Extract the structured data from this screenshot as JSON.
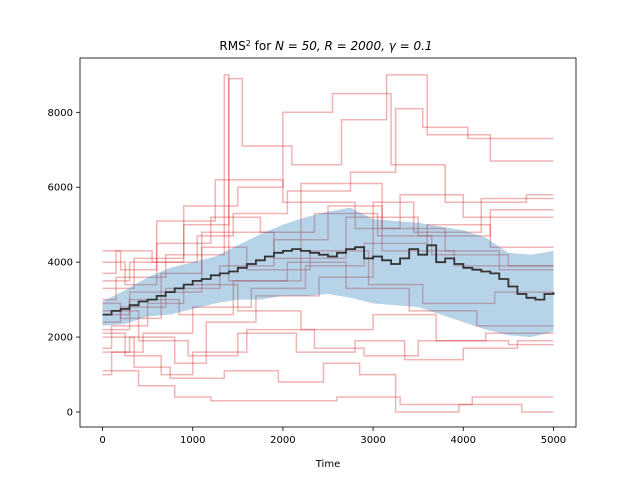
{
  "chart_data": {
    "type": "line",
    "title": "RMS² for N = 50, R = 2000, γ = 0.1",
    "title_parts": {
      "prefix": "RMS",
      "sup": "2",
      "mid": " for ",
      "math": "N = 50, R = 2000, γ = 0.1"
    },
    "xlabel": "Time",
    "ylabel": "",
    "xlim": [
      -250,
      5250
    ],
    "ylim": [
      -400,
      9450
    ],
    "xticks": [
      0,
      1000,
      2000,
      3000,
      4000,
      5000
    ],
    "yticks": [
      0,
      2000,
      4000,
      6000,
      8000
    ],
    "grid": false,
    "colors": {
      "runs": "#d62728",
      "band": "#1f77b4",
      "mean": "#333333"
    },
    "band": {
      "x": [
        0,
        250,
        500,
        750,
        1000,
        1250,
        1500,
        1750,
        2000,
        2250,
        2500,
        2750,
        3000,
        3250,
        3500,
        3750,
        4000,
        4250,
        4500,
        4750,
        5000
      ],
      "lower": [
        2300,
        2350,
        2550,
        2600,
        2750,
        2900,
        3000,
        3000,
        3100,
        3100,
        3150,
        3050,
        2900,
        2850,
        2800,
        2600,
        2400,
        2200,
        2050,
        2000,
        2150
      ],
      "upper": [
        2950,
        3250,
        3600,
        3850,
        4000,
        4150,
        4450,
        4750,
        5000,
        5200,
        5350,
        5450,
        5150,
        5100,
        5050,
        4950,
        4850,
        4650,
        4250,
        4200,
        4300
      ]
    },
    "mean": {
      "x": [
        0,
        100,
        200,
        300,
        400,
        500,
        600,
        700,
        800,
        900,
        1000,
        1100,
        1200,
        1300,
        1400,
        1500,
        1600,
        1700,
        1800,
        1900,
        2000,
        2100,
        2200,
        2300,
        2400,
        2500,
        2600,
        2700,
        2800,
        2900,
        3000,
        3100,
        3200,
        3300,
        3400,
        3500,
        3600,
        3700,
        3800,
        3900,
        4000,
        4100,
        4200,
        4300,
        4400,
        4500,
        4600,
        4700,
        4800,
        4900,
        5000
      ],
      "y": [
        2600,
        2700,
        2750,
        2850,
        2950,
        3000,
        3100,
        3200,
        3300,
        3400,
        3500,
        3550,
        3650,
        3700,
        3750,
        3850,
        3950,
        4050,
        4150,
        4250,
        4300,
        4350,
        4300,
        4250,
        4200,
        4150,
        4250,
        4350,
        4400,
        4100,
        4150,
        4050,
        3950,
        4100,
        4350,
        4200,
        4450,
        4000,
        4100,
        3950,
        3850,
        3800,
        3750,
        3700,
        3550,
        3350,
        3150,
        3050,
        3000,
        3150,
        3200
      ]
    },
    "series": [
      {
        "x": [
          0,
          300,
          300,
          1100,
          1100,
          1900,
          1900,
          2700,
          2700,
          3500,
          3500,
          4300,
          4300,
          5000
        ],
        "y": [
          2600,
          2600,
          3200,
          3200,
          4800,
          4800,
          4100,
          4100,
          5200,
          5200,
          4700,
          4700,
          5400,
          5400
        ]
      },
      {
        "x": [
          0,
          150,
          150,
          700,
          700,
          1350,
          1350,
          1400,
          1400,
          2200,
          2200,
          3100,
          3100,
          3900,
          3900,
          5000
        ],
        "y": [
          3000,
          3000,
          3600,
          3600,
          4200,
          4200,
          9000,
          9000,
          3500,
          3500,
          6100,
          6100,
          4300,
          4300,
          3900,
          3900
        ]
      },
      {
        "x": [
          0,
          200,
          200,
          600,
          600,
          1250,
          1250,
          2000,
          2000,
          2800,
          2800,
          3300,
          3300,
          4000,
          4000,
          5000
        ],
        "y": [
          4300,
          4300,
          3800,
          3800,
          5100,
          5100,
          6200,
          6200,
          5600,
          5600,
          4900,
          4900,
          5800,
          5800,
          5200,
          5200
        ]
      },
      {
        "x": [
          0,
          100,
          100,
          500,
          500,
          900,
          900,
          1500,
          1500,
          2200,
          2200,
          3000,
          3000,
          3700,
          3700,
          4500,
          4500,
          5000
        ],
        "y": [
          1700,
          1700,
          2300,
          2300,
          2900,
          2900,
          3400,
          3400,
          2700,
          2700,
          2200,
          2200,
          2600,
          2600,
          1900,
          1900,
          1800,
          1800
        ]
      },
      {
        "x": [
          0,
          400,
          400,
          800,
          800,
          1200,
          1200,
          1800,
          1800,
          2600,
          2600,
          3300,
          3300,
          4100,
          4100,
          5000
        ],
        "y": [
          1100,
          1100,
          700,
          700,
          400,
          400,
          300,
          300,
          300,
          300,
          400,
          400,
          200,
          200,
          400,
          400
        ]
      },
      {
        "x": [
          0,
          250,
          250,
          650,
          650,
          1000,
          1000,
          1600,
          1600,
          2350,
          2350,
          2900,
          2900,
          3500,
          3500,
          4250,
          4250,
          5000
        ],
        "y": [
          2100,
          2100,
          1500,
          1500,
          1000,
          1000,
          1600,
          1600,
          2200,
          2200,
          1700,
          1700,
          1500,
          1500,
          1900,
          1900,
          2100,
          2100
        ]
      },
      {
        "x": [
          0,
          350,
          350,
          900,
          900,
          1400,
          1400,
          1550,
          1550,
          2100,
          2100,
          2650,
          2650,
          3150,
          3150,
          3600,
          3600,
          4300,
          4300,
          5000
        ],
        "y": [
          3300,
          3300,
          4100,
          4100,
          5000,
          5000,
          8900,
          8900,
          7100,
          7100,
          6600,
          6600,
          7800,
          7800,
          9000,
          9000,
          7400,
          7400,
          6700,
          6700
        ]
      },
      {
        "x": [
          0,
          200,
          200,
          700,
          700,
          1300,
          1300,
          1900,
          1900,
          2500,
          2500,
          3100,
          3100,
          3800,
          3800,
          4400,
          4400,
          5000
        ],
        "y": [
          2400,
          2400,
          2800,
          2800,
          3300,
          3300,
          3900,
          3900,
          4600,
          4600,
          5500,
          5500,
          4900,
          4900,
          4300,
          4300,
          3800,
          3800
        ]
      },
      {
        "x": [
          0,
          300,
          300,
          800,
          800,
          1150,
          1150,
          1700,
          1700,
          2400,
          2400,
          3000,
          3000,
          3450,
          3450,
          4200,
          4200,
          5000
        ],
        "y": [
          1600,
          1600,
          2000,
          2000,
          1300,
          1300,
          2400,
          2400,
          3100,
          3100,
          3600,
          3600,
          5600,
          5600,
          4800,
          4800,
          5700,
          5700
        ]
      },
      {
        "x": [
          0,
          150,
          150,
          550,
          550,
          1050,
          1050,
          1450,
          1450,
          2050,
          2050,
          2750,
          2750,
          3250,
          3250,
          3550,
          3550,
          4050,
          4050,
          5000
        ],
        "y": [
          3700,
          3700,
          4300,
          4300,
          4000,
          4000,
          4700,
          4700,
          5300,
          5300,
          5900,
          5900,
          6400,
          6400,
          8100,
          8100,
          7600,
          7600,
          7300,
          7300
        ]
      },
      {
        "x": [
          0,
          350,
          350,
          750,
          750,
          1350,
          1350,
          1950,
          1950,
          2450,
          2450,
          2850,
          2850,
          3250,
          3250,
          3950,
          3950,
          4650,
          4650,
          5000
        ],
        "y": [
          2000,
          2000,
          1200,
          1200,
          900,
          900,
          1100,
          1100,
          800,
          800,
          1300,
          1300,
          1000,
          1000,
          0,
          0,
          200,
          200,
          0,
          0
        ]
      },
      {
        "x": [
          0,
          200,
          200,
          650,
          650,
          1100,
          1100,
          1600,
          1600,
          2300,
          2300,
          2950,
          2950,
          3550,
          3550,
          4350,
          4350,
          5000
        ],
        "y": [
          2900,
          2900,
          2500,
          2500,
          3700,
          3700,
          4400,
          4400,
          3800,
          3800,
          4300,
          4300,
          3400,
          3400,
          2900,
          2900,
          3200,
          3200
        ]
      },
      {
        "x": [
          0,
          300,
          300,
          850,
          850,
          1450,
          1450,
          2050,
          2050,
          2700,
          2700,
          3400,
          3400,
          4150,
          4150,
          5000
        ],
        "y": [
          2200,
          2200,
          3000,
          3000,
          2600,
          2600,
          3500,
          3500,
          4000,
          4000,
          3300,
          3300,
          2700,
          2700,
          2300,
          2300
        ]
      },
      {
        "x": [
          0,
          250,
          250,
          600,
          600,
          1200,
          1200,
          1750,
          1750,
          2350,
          2350,
          3050,
          3050,
          3650,
          3650,
          4500,
          4500,
          5000
        ],
        "y": [
          4000,
          4000,
          3400,
          3400,
          4500,
          4500,
          5200,
          5200,
          4800,
          4800,
          5300,
          5300,
          4700,
          4700,
          4200,
          4200,
          3900,
          3900
        ]
      },
      {
        "x": [
          0,
          400,
          400,
          950,
          950,
          1500,
          1500,
          2150,
          2150,
          2800,
          2800,
          3350,
          3350,
          4000,
          4000,
          4600,
          4600,
          5000
        ],
        "y": [
          2700,
          2700,
          1900,
          1900,
          1500,
          1500,
          2100,
          2100,
          1600,
          1600,
          1900,
          1900,
          1400,
          1400,
          1700,
          1700,
          1900,
          1900
        ]
      },
      {
        "x": [
          0,
          100,
          100,
          450,
          450,
          1000,
          1000,
          1650,
          1650,
          2250,
          2250,
          2900,
          2900,
          3600,
          3600,
          4300,
          4300,
          5000
        ],
        "y": [
          1000,
          1000,
          1600,
          1600,
          2100,
          2100,
          2800,
          2800,
          3300,
          3300,
          3900,
          3900,
          4500,
          4500,
          5000,
          5000,
          4400,
          4400
        ]
      },
      {
        "x": [
          0,
          300,
          300,
          900,
          900,
          1500,
          1500,
          2000,
          2000,
          2550,
          2550,
          3200,
          3200,
          3800,
          3800,
          4700,
          4700,
          5000
        ],
        "y": [
          3500,
          3500,
          4000,
          4000,
          5500,
          5500,
          6000,
          6000,
          8000,
          8000,
          8500,
          8500,
          6600,
          6600,
          5600,
          5600,
          5800,
          5800
        ]
      }
    ]
  }
}
